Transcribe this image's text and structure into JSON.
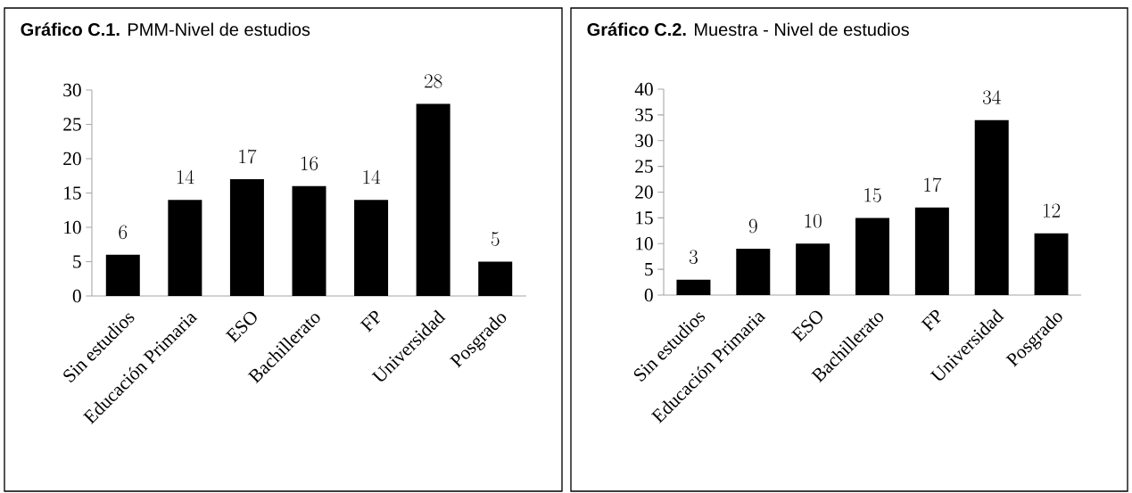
{
  "chart_data": [
    {
      "type": "bar",
      "title": "**Gráfico C.1.** PMM-Nivel de estudios",
      "categories": [
        "Sin estudios",
        "Educación Primaria",
        "ESO",
        "Bachillerato",
        "FP",
        "Universidad",
        "Posgrado"
      ],
      "values": [
        6,
        14,
        17,
        16,
        14,
        28,
        5
      ],
      "color": "#000000",
      "ylim": [
        0,
        30
      ],
      "yticks": [
        0,
        5,
        10,
        15,
        20,
        25,
        30
      ],
      "data_labels": true
    },
    {
      "type": "bar",
      "title": "**Gráfico C.2.** Muestra - Nivel de estudios",
      "categories": [
        "Sin estudios",
        "Educación Primaria",
        "ESO",
        "Bachillerato",
        "FP",
        "Universidad",
        "Posgrado"
      ],
      "values": [
        3,
        9,
        10,
        15,
        17,
        34,
        12
      ],
      "color": "#000000",
      "ylim": [
        0,
        40
      ],
      "yticks": [
        0,
        5,
        10,
        15,
        20,
        25,
        30,
        35,
        40
      ],
      "data_labels": true
    }
  ]
}
